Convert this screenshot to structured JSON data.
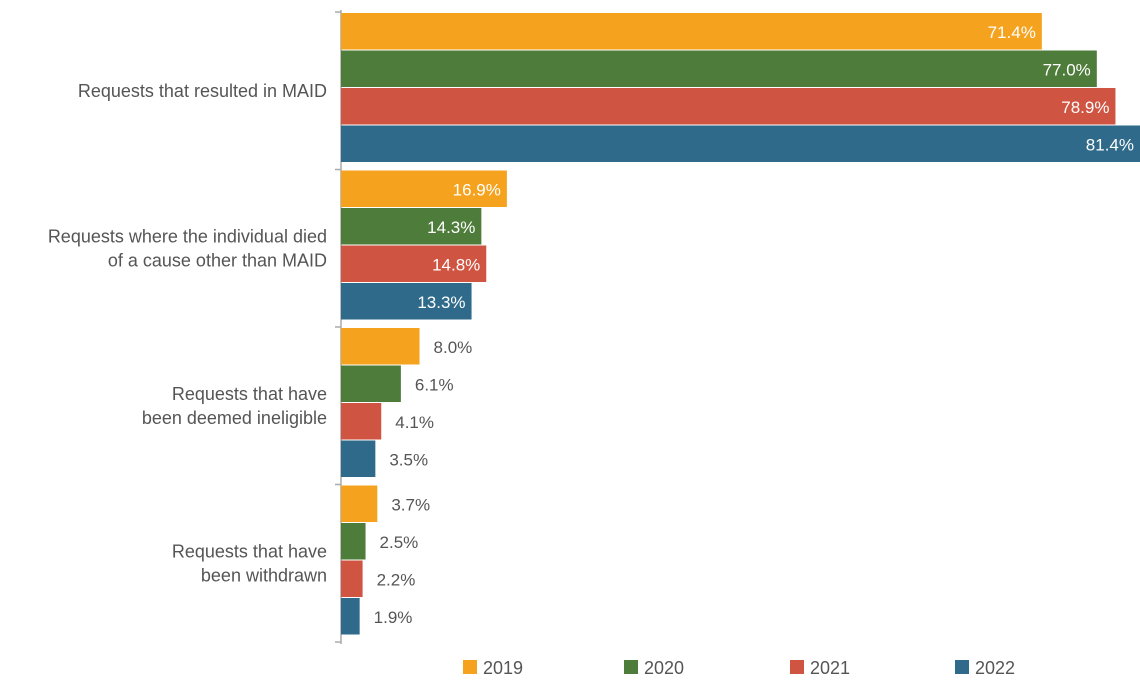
{
  "chart_data": {
    "type": "bar",
    "orientation": "horizontal",
    "categories": [
      [
        "Requests that resulted in MAID"
      ],
      [
        "Requests where the individual died",
        "of a cause other than MAID"
      ],
      [
        "Requests that have",
        "been deemed ineligible"
      ],
      [
        "Requests that have",
        "been withdrawn"
      ]
    ],
    "series": [
      {
        "name": "2019",
        "color": "#f5a31f",
        "values": [
          71.4,
          16.9,
          8.0,
          3.7
        ],
        "labels": [
          "71.4%",
          "16.9%",
          "8.0%",
          "3.7%"
        ]
      },
      {
        "name": "2020",
        "color": "#4e7c3a",
        "values": [
          77.0,
          14.3,
          6.1,
          2.5
        ],
        "labels": [
          "77.0%",
          "14.3%",
          "6.1%",
          "2.5%"
        ]
      },
      {
        "name": "2021",
        "color": "#d05442",
        "values": [
          78.9,
          14.8,
          4.1,
          2.2
        ],
        "labels": [
          "78.9%",
          "14.8%",
          "4.1%",
          "2.2%"
        ]
      },
      {
        "name": "2022",
        "color": "#2f6a8a",
        "values": [
          81.4,
          13.3,
          3.5,
          1.9
        ],
        "labels": [
          "81.4%",
          "13.3%",
          "3.5%",
          "1.9%"
        ]
      }
    ],
    "xlim": [
      0,
      81.4
    ],
    "legend_position": "bottom",
    "grid": false
  }
}
